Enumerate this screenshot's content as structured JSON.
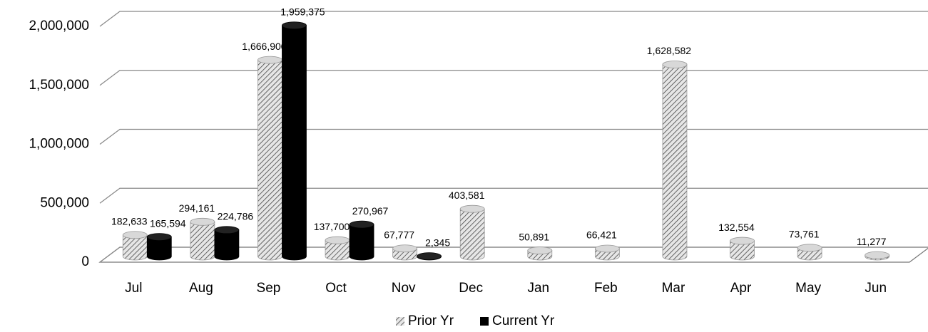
{
  "chart_data": {
    "type": "bar3d",
    "categories": [
      "Jul",
      "Aug",
      "Sep",
      "Oct",
      "Nov",
      "Dec",
      "Jan",
      "Feb",
      "Mar",
      "Apr",
      "May",
      "Jun"
    ],
    "series": [
      {
        "name": "Prior Yr",
        "color": "#bdbdbd",
        "values": [
          182633,
          294161,
          1666900,
          137700,
          67777,
          403581,
          50891,
          66421,
          1628582,
          132554,
          73761,
          11277
        ],
        "value_labels": [
          "182,633",
          "294,161",
          "1,666,900",
          "137,700",
          "67,777",
          "403,581",
          "50,891",
          "66,421",
          "1,628,582",
          "132,554",
          "73,761",
          "11,277"
        ]
      },
      {
        "name": "Current Yr",
        "color": "#000000",
        "values": [
          165594,
          224786,
          1959375,
          270967,
          2345,
          null,
          null,
          null,
          null,
          null,
          null,
          null
        ],
        "value_labels": [
          "165,594",
          "224,786",
          "1,959,375",
          "270,967",
          "2,345",
          null,
          null,
          null,
          null,
          null,
          null,
          null
        ]
      }
    ],
    "ylim": [
      0,
      2000000
    ],
    "yticks": [
      0,
      {
        "value": 500000,
        "label": "500,000"
      },
      {
        "value": 1000000,
        "label": "1,000,000"
      },
      {
        "value": 1500000,
        "label": "1,500,000"
      },
      {
        "value": 2000000,
        "label": "2,000,000"
      }
    ],
    "grid": true,
    "legend": "bottom"
  }
}
